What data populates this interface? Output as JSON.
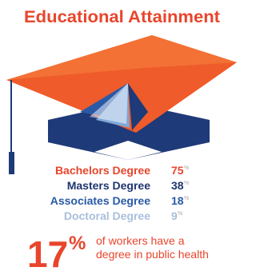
{
  "title": "Educational Attainment",
  "degrees": [
    {
      "label": "Bachelors Degree",
      "value": "75",
      "unit": "%",
      "color": "#e8452c"
    },
    {
      "label": "Masters Degree",
      "value": "38",
      "unit": "%",
      "color": "#1f3570"
    },
    {
      "label": "Associates Degree",
      "value": "18",
      "unit": "%",
      "color": "#2a5aa6"
    },
    {
      "label": "Doctoral Degree",
      "value": "9",
      "unit": "%",
      "color": "#a9bfdc"
    }
  ],
  "highlight": {
    "value": "17",
    "unit": "%",
    "lines": [
      "of workers have a",
      "degree in public health"
    ]
  }
}
